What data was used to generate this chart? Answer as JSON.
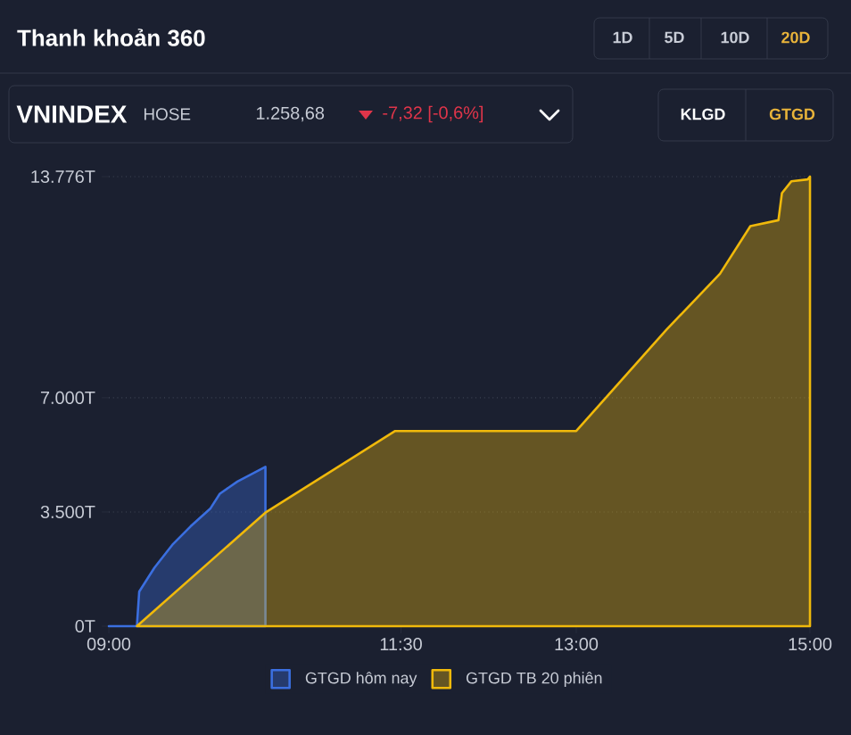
{
  "chart_data": {
    "type": "area",
    "title": "Thanh khoản 360",
    "annotations": [
      "1D",
      "5D",
      "10D",
      "20D",
      "VNINDEX",
      "HOSE",
      "1.258,68",
      "-7,32 [-0,6%]",
      "KLGD",
      "GTGD"
    ],
    "xlim": [
      9,
      15
    ],
    "ylim": [
      0,
      13776
    ],
    "xticks": [
      {
        "value": 9,
        "label": "09:00"
      },
      {
        "value": 11.5,
        "label": "11:30"
      },
      {
        "value": 13,
        "label": "13:00"
      },
      {
        "value": 15,
        "label": "15:00"
      }
    ],
    "yticks": [
      {
        "value": 0,
        "label": "0T"
      },
      {
        "value": 3500,
        "label": "3.500T"
      },
      {
        "value": 7000,
        "label": "7.000T"
      },
      {
        "value": 13776,
        "label": "13.776T"
      }
    ],
    "grid": "y",
    "legend": "bottom",
    "series": [
      {
        "name": "GTGD hôm nay",
        "color": "#3b6fe0",
        "x": [
          9,
          9.24,
          9.26,
          9.39,
          9.55,
          9.7,
          9.87,
          9.95,
          10.1,
          10.34
        ],
        "values": [
          0,
          0,
          1060,
          1790,
          2520,
          3060,
          3610,
          4060,
          4430,
          4880
        ]
      },
      {
        "name": "GTGD TB 20 phiên",
        "color": "#f0b90b",
        "x": [
          9.24,
          10.34,
          11.45,
          13,
          13.77,
          14.23,
          14.49,
          14.73,
          14.76,
          14.84,
          14.98,
          15
        ],
        "values": [
          0,
          3480,
          5980,
          5980,
          9080,
          10800,
          12260,
          12440,
          13270,
          13630,
          13690,
          13776
        ]
      }
    ]
  }
}
